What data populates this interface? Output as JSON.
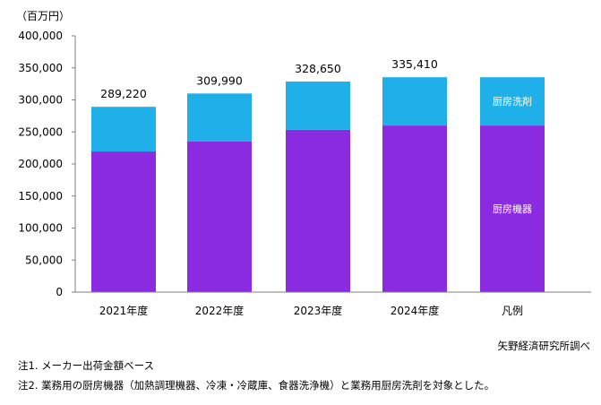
{
  "chart_data": {
    "type": "bar",
    "stacked": true,
    "unit_label": "（百万円）",
    "categories": [
      "2021年度",
      "2022年度",
      "2023年度",
      "2024年度"
    ],
    "legend_category": "凡例",
    "series": [
      {
        "name": "厨房機器",
        "values": [
          219500,
          235000,
          253500,
          260000
        ],
        "color": "#8a2be2"
      },
      {
        "name": "厨房洗剤",
        "values": [
          69720,
          74990,
          75150,
          75410
        ],
        "color": "#1fb0ea"
      }
    ],
    "totals": [
      289220,
      309990,
      328650,
      335410
    ],
    "total_labels": [
      "289,220",
      "309,990",
      "328,650",
      "335,410"
    ],
    "legend_bar": {
      "bottom_value": 260000,
      "top_value": 75410
    },
    "ylim": [
      0,
      400000
    ],
    "y_ticks": [
      0,
      50000,
      100000,
      150000,
      200000,
      250000,
      300000,
      350000,
      400000
    ],
    "y_tick_labels": [
      "0",
      "50,000",
      "100,000",
      "150,000",
      "200,000",
      "250,000",
      "300,000",
      "350,000",
      "400,000"
    ],
    "grid": false,
    "legend": "inside-last-bar"
  },
  "source": "矢野経済研究所調べ",
  "notes": [
    "注1. メーカー出荷金額ベース",
    "注2. 業務用の厨房機器（加熱調理機器、冷凍・冷蔵庫、食器洗浄機）と業務用厨房洗剤を対象とした。"
  ]
}
